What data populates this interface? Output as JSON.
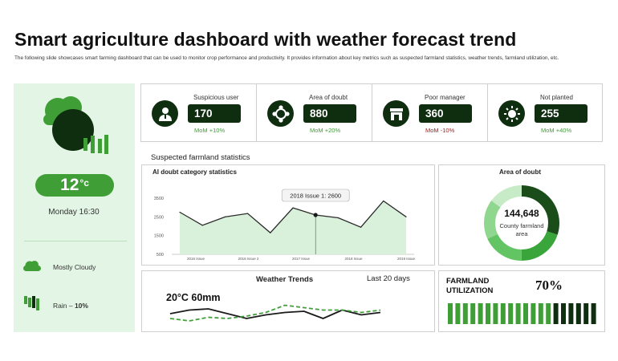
{
  "header": {
    "title": "Smart agriculture dashboard with weather forecast trend",
    "subtitle": "The following slide showcases smart farming dashboard that can be used to monitor crop performance and productivity. It provides information about key metrics such as suspected farmland statistics, weather trends, farmland utilization, etc."
  },
  "weather": {
    "icon": "cloud-rain-icon",
    "temperature": "12",
    "temperature_unit": "°c",
    "datetime": "Monday 16:30",
    "conditions": [
      {
        "icon": "cloud-icon",
        "label": "Mostly Cloudy"
      },
      {
        "icon": "rain-icon",
        "label": "Rain – ",
        "value": "10%"
      }
    ]
  },
  "kpis": [
    {
      "icon": "user-icon",
      "label": "Suspicious user",
      "value": "170",
      "mom": "MoM +10%",
      "trend": "up"
    },
    {
      "icon": "target-icon",
      "label": "Area of doubt",
      "value": "880",
      "mom": "MoM +20%",
      "trend": "up"
    },
    {
      "icon": "store-icon",
      "label": "Poor manager",
      "value": "360",
      "mom": "MoM -10%",
      "trend": "down"
    },
    {
      "icon": "sun-icon",
      "label": "Not planted",
      "value": "255",
      "mom": "MoM +40%",
      "trend": "up"
    }
  ],
  "colors": {
    "accent": "#3f9f36",
    "dark": "#0f2d0f",
    "positive": "#3f9f36",
    "negative": "#9b2323",
    "light_green": "#e3f5e4",
    "area_fill": "#d9f0da"
  },
  "section": {
    "heading": "Suspected farmland statistics"
  },
  "chart_data": [
    {
      "type": "area",
      "title": "AI doubt category statistics",
      "x_ticks": [
        "2016 Issue",
        "2016 Issue 2",
        "2017 Issue",
        "2018 Issue",
        "2019 Issue"
      ],
      "y_ticks": [
        "3500",
        "2500",
        "1500",
        "500"
      ],
      "ylim": [
        500,
        3500
      ],
      "series": [
        {
          "values": [
            2750,
            2050,
            2500,
            2680,
            1650,
            2980,
            2600,
            2450,
            1950,
            3350,
            2500
          ]
        }
      ],
      "tooltip": {
        "label": "2018 Issue 1: 2600",
        "index": 6
      },
      "grid": false,
      "legend": "none"
    },
    {
      "type": "pie",
      "title": "Area of doubt",
      "center_value": "144,648",
      "center_label": "County farmland area",
      "slices": [
        {
          "value": 30,
          "color": "#1b4d1b"
        },
        {
          "value": 20,
          "color": "#3aa53a"
        },
        {
          "value": 18,
          "color": "#62c462"
        },
        {
          "value": 17,
          "color": "#8fd68f"
        },
        {
          "value": 15,
          "color": "#c7ebc7"
        }
      ]
    },
    {
      "type": "line",
      "title": "Weather Trends",
      "range_label": "Last 20 days",
      "summary": "20°C 60mm",
      "series": [
        {
          "style": "solid",
          "values": [
            12,
            15,
            16,
            12,
            8,
            11,
            13,
            14,
            8,
            15,
            11,
            13
          ]
        },
        {
          "style": "dashed",
          "values": [
            8,
            6,
            9,
            8,
            10,
            13,
            19,
            17,
            15,
            15,
            13,
            15
          ]
        }
      ],
      "legend": "none"
    }
  ],
  "utilization": {
    "label_line1": "FARMLAND",
    "label_line2": "UTILIZATION",
    "percent_text": "70%",
    "percent": 70,
    "bar_count": 20
  }
}
